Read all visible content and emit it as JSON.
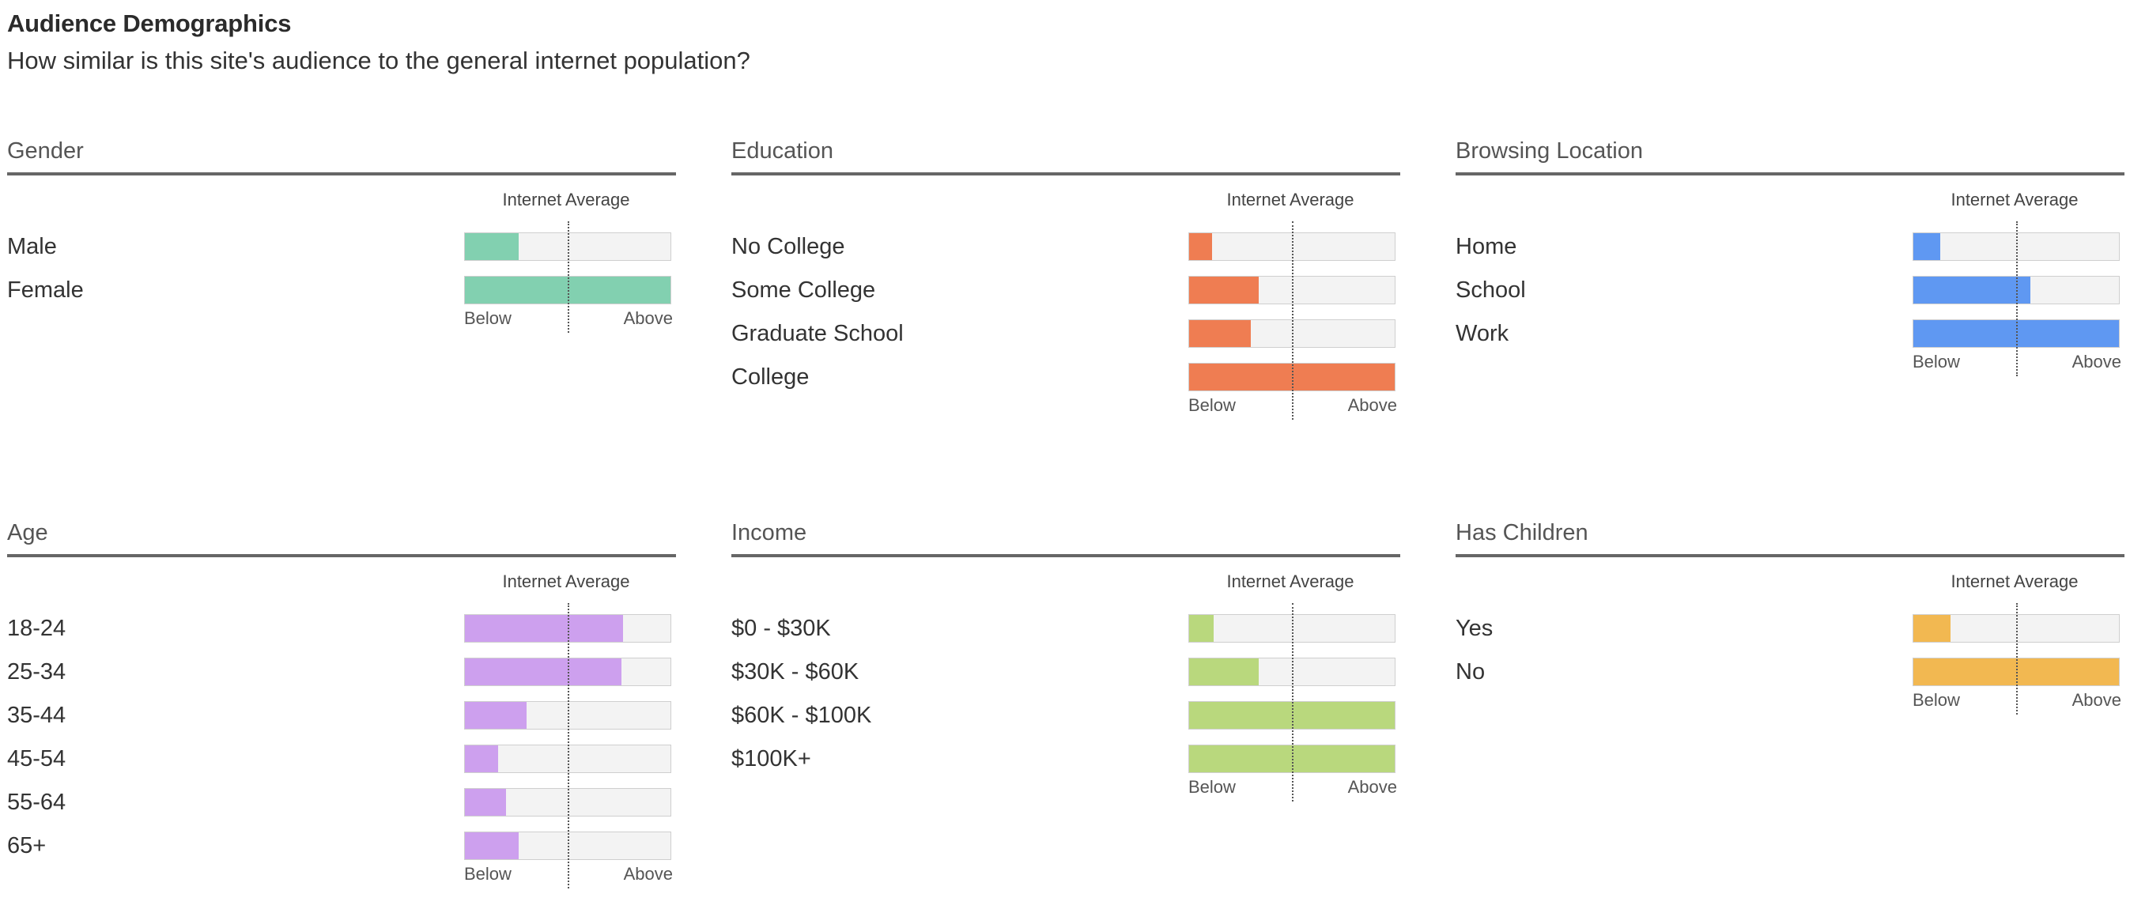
{
  "header": {
    "title": "Audience Demographics",
    "subtitle": "How similar is this site's audience to the general internet population?"
  },
  "common": {
    "internet_average": "Internet Average",
    "below": "Below",
    "above": "Above"
  },
  "chart_data": [
    {
      "type": "bar",
      "title": "Gender",
      "color": "#82d0b0",
      "categories": [
        "Male",
        "Female"
      ],
      "values": [
        26,
        100
      ],
      "xlim": [
        0,
        100
      ],
      "reference_line": 50
    },
    {
      "type": "bar",
      "title": "Education",
      "color": "#ef7d52",
      "categories": [
        "No College",
        "Some College",
        "Graduate School",
        "College"
      ],
      "values": [
        11,
        34,
        30,
        100
      ],
      "xlim": [
        0,
        100
      ],
      "reference_line": 50
    },
    {
      "type": "bar",
      "title": "Browsing Location",
      "color": "#5f98f2",
      "categories": [
        "Home",
        "School",
        "Work"
      ],
      "values": [
        13,
        57,
        100
      ],
      "xlim": [
        0,
        100
      ],
      "reference_line": 50
    },
    {
      "type": "bar",
      "title": "Age",
      "color": "#cda0ee",
      "categories": [
        "18-24",
        "25-34",
        "35-44",
        "45-54",
        "55-64",
        "65+"
      ],
      "values": [
        77,
        76,
        30,
        16,
        20,
        26
      ],
      "xlim": [
        0,
        100
      ],
      "reference_line": 50
    },
    {
      "type": "bar",
      "title": "Income",
      "color": "#b9d87d",
      "categories": [
        "$0 - $30K",
        "$30K - $60K",
        "$60K - $100K",
        "$100K+"
      ],
      "values": [
        12,
        34,
        100,
        100
      ],
      "xlim": [
        0,
        100
      ],
      "reference_line": 50
    },
    {
      "type": "bar",
      "title": "Has Children",
      "color": "#f2b851",
      "categories": [
        "Yes",
        "No"
      ],
      "values": [
        18,
        100
      ],
      "xlim": [
        0,
        100
      ],
      "reference_line": 50
    }
  ]
}
